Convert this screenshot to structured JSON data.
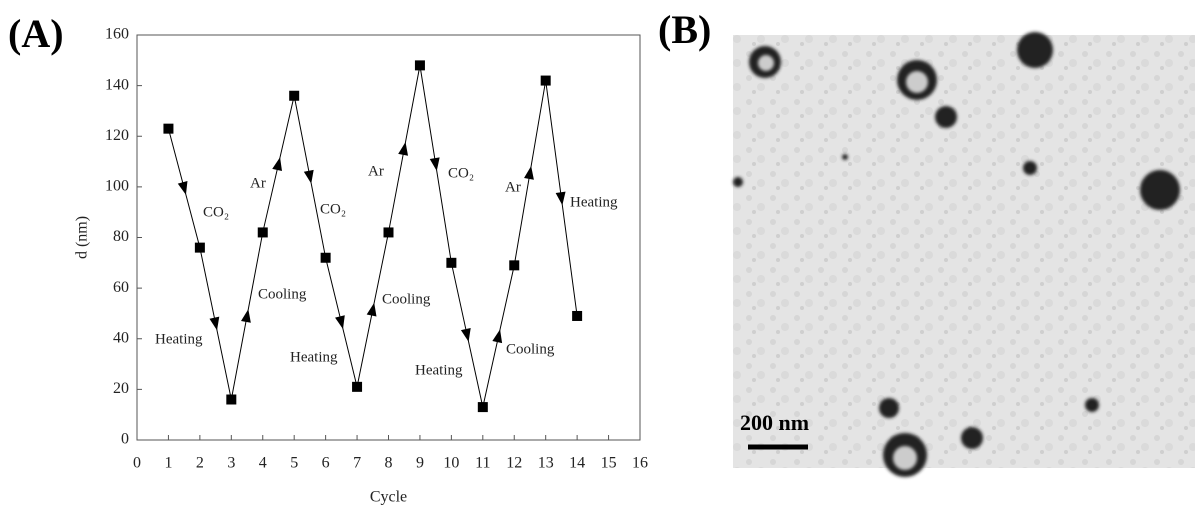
{
  "chart_data": {
    "type": "line",
    "xlabel": "Cycle",
    "ylabel": "d (nm)",
    "x": [
      1,
      2,
      3,
      4,
      5,
      6,
      7,
      8,
      9,
      10,
      11,
      12,
      13,
      14
    ],
    "series": [
      {
        "color": "#000000",
        "values": [
          123,
          76,
          16,
          82,
          136,
          72,
          21,
          82,
          148,
          70,
          13,
          69,
          142,
          49
        ]
      }
    ],
    "xlim": [
      0,
      16
    ],
    "xticks": [
      0,
      1,
      2,
      3,
      4,
      5,
      6,
      7,
      8,
      9,
      10,
      11,
      12,
      13,
      14,
      15,
      16
    ],
    "ylim": [
      0,
      160
    ],
    "yticks": [
      0,
      20,
      40,
      60,
      80,
      100,
      120,
      140,
      160
    ],
    "annotations": [
      "CO₂",
      "Heating",
      "Cooling",
      "Ar",
      "CO₂",
      "Heating",
      "Cooling",
      "Ar",
      "CO₂",
      "Heating",
      "Cooling",
      "Ar",
      "Heating"
    ]
  },
  "panels": {
    "label_a": "(A)",
    "label_b": "(B)",
    "scale_bar": "200 nm"
  }
}
